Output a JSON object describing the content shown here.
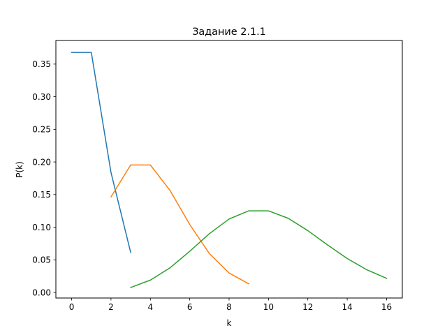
{
  "chart_data": {
    "type": "line",
    "title": "Задание 2.1.1",
    "xlabel": "k",
    "ylabel": "P(k)",
    "xlim": [
      -0.8,
      16.8
    ],
    "ylim": [
      -0.0085,
      0.3862
    ],
    "xticks": [
      0,
      2,
      4,
      6,
      8,
      10,
      12,
      14,
      16
    ],
    "xtick_labels": [
      "0",
      "2",
      "4",
      "6",
      "8",
      "10",
      "12",
      "14",
      "16"
    ],
    "yticks": [
      0.0,
      0.05,
      0.1,
      0.15,
      0.2,
      0.25,
      0.3,
      0.35
    ],
    "ytick_labels": [
      "0.00",
      "0.05",
      "0.10",
      "0.15",
      "0.20",
      "0.25",
      "0.30",
      "0.35"
    ],
    "grid": false,
    "legend": "none",
    "series": [
      {
        "color": "#1f77b4",
        "x": [
          0,
          1,
          2,
          3
        ],
        "y": [
          0.3679,
          0.3679,
          0.1839,
          0.0613
        ]
      },
      {
        "color": "#ff7f0e",
        "x": [
          2,
          3,
          4,
          5,
          6,
          7,
          8,
          9
        ],
        "y": [
          0.1465,
          0.1954,
          0.1954,
          0.1563,
          0.1042,
          0.0595,
          0.0298,
          0.0132
        ]
      },
      {
        "color": "#2ca02c",
        "x": [
          3,
          4,
          5,
          6,
          7,
          8,
          9,
          10,
          11,
          12,
          13,
          14,
          15,
          16
        ],
        "y": [
          0.0076,
          0.0189,
          0.0378,
          0.0631,
          0.0901,
          0.1126,
          0.1251,
          0.1251,
          0.1137,
          0.0948,
          0.0729,
          0.0521,
          0.0347,
          0.0217
        ]
      }
    ]
  }
}
